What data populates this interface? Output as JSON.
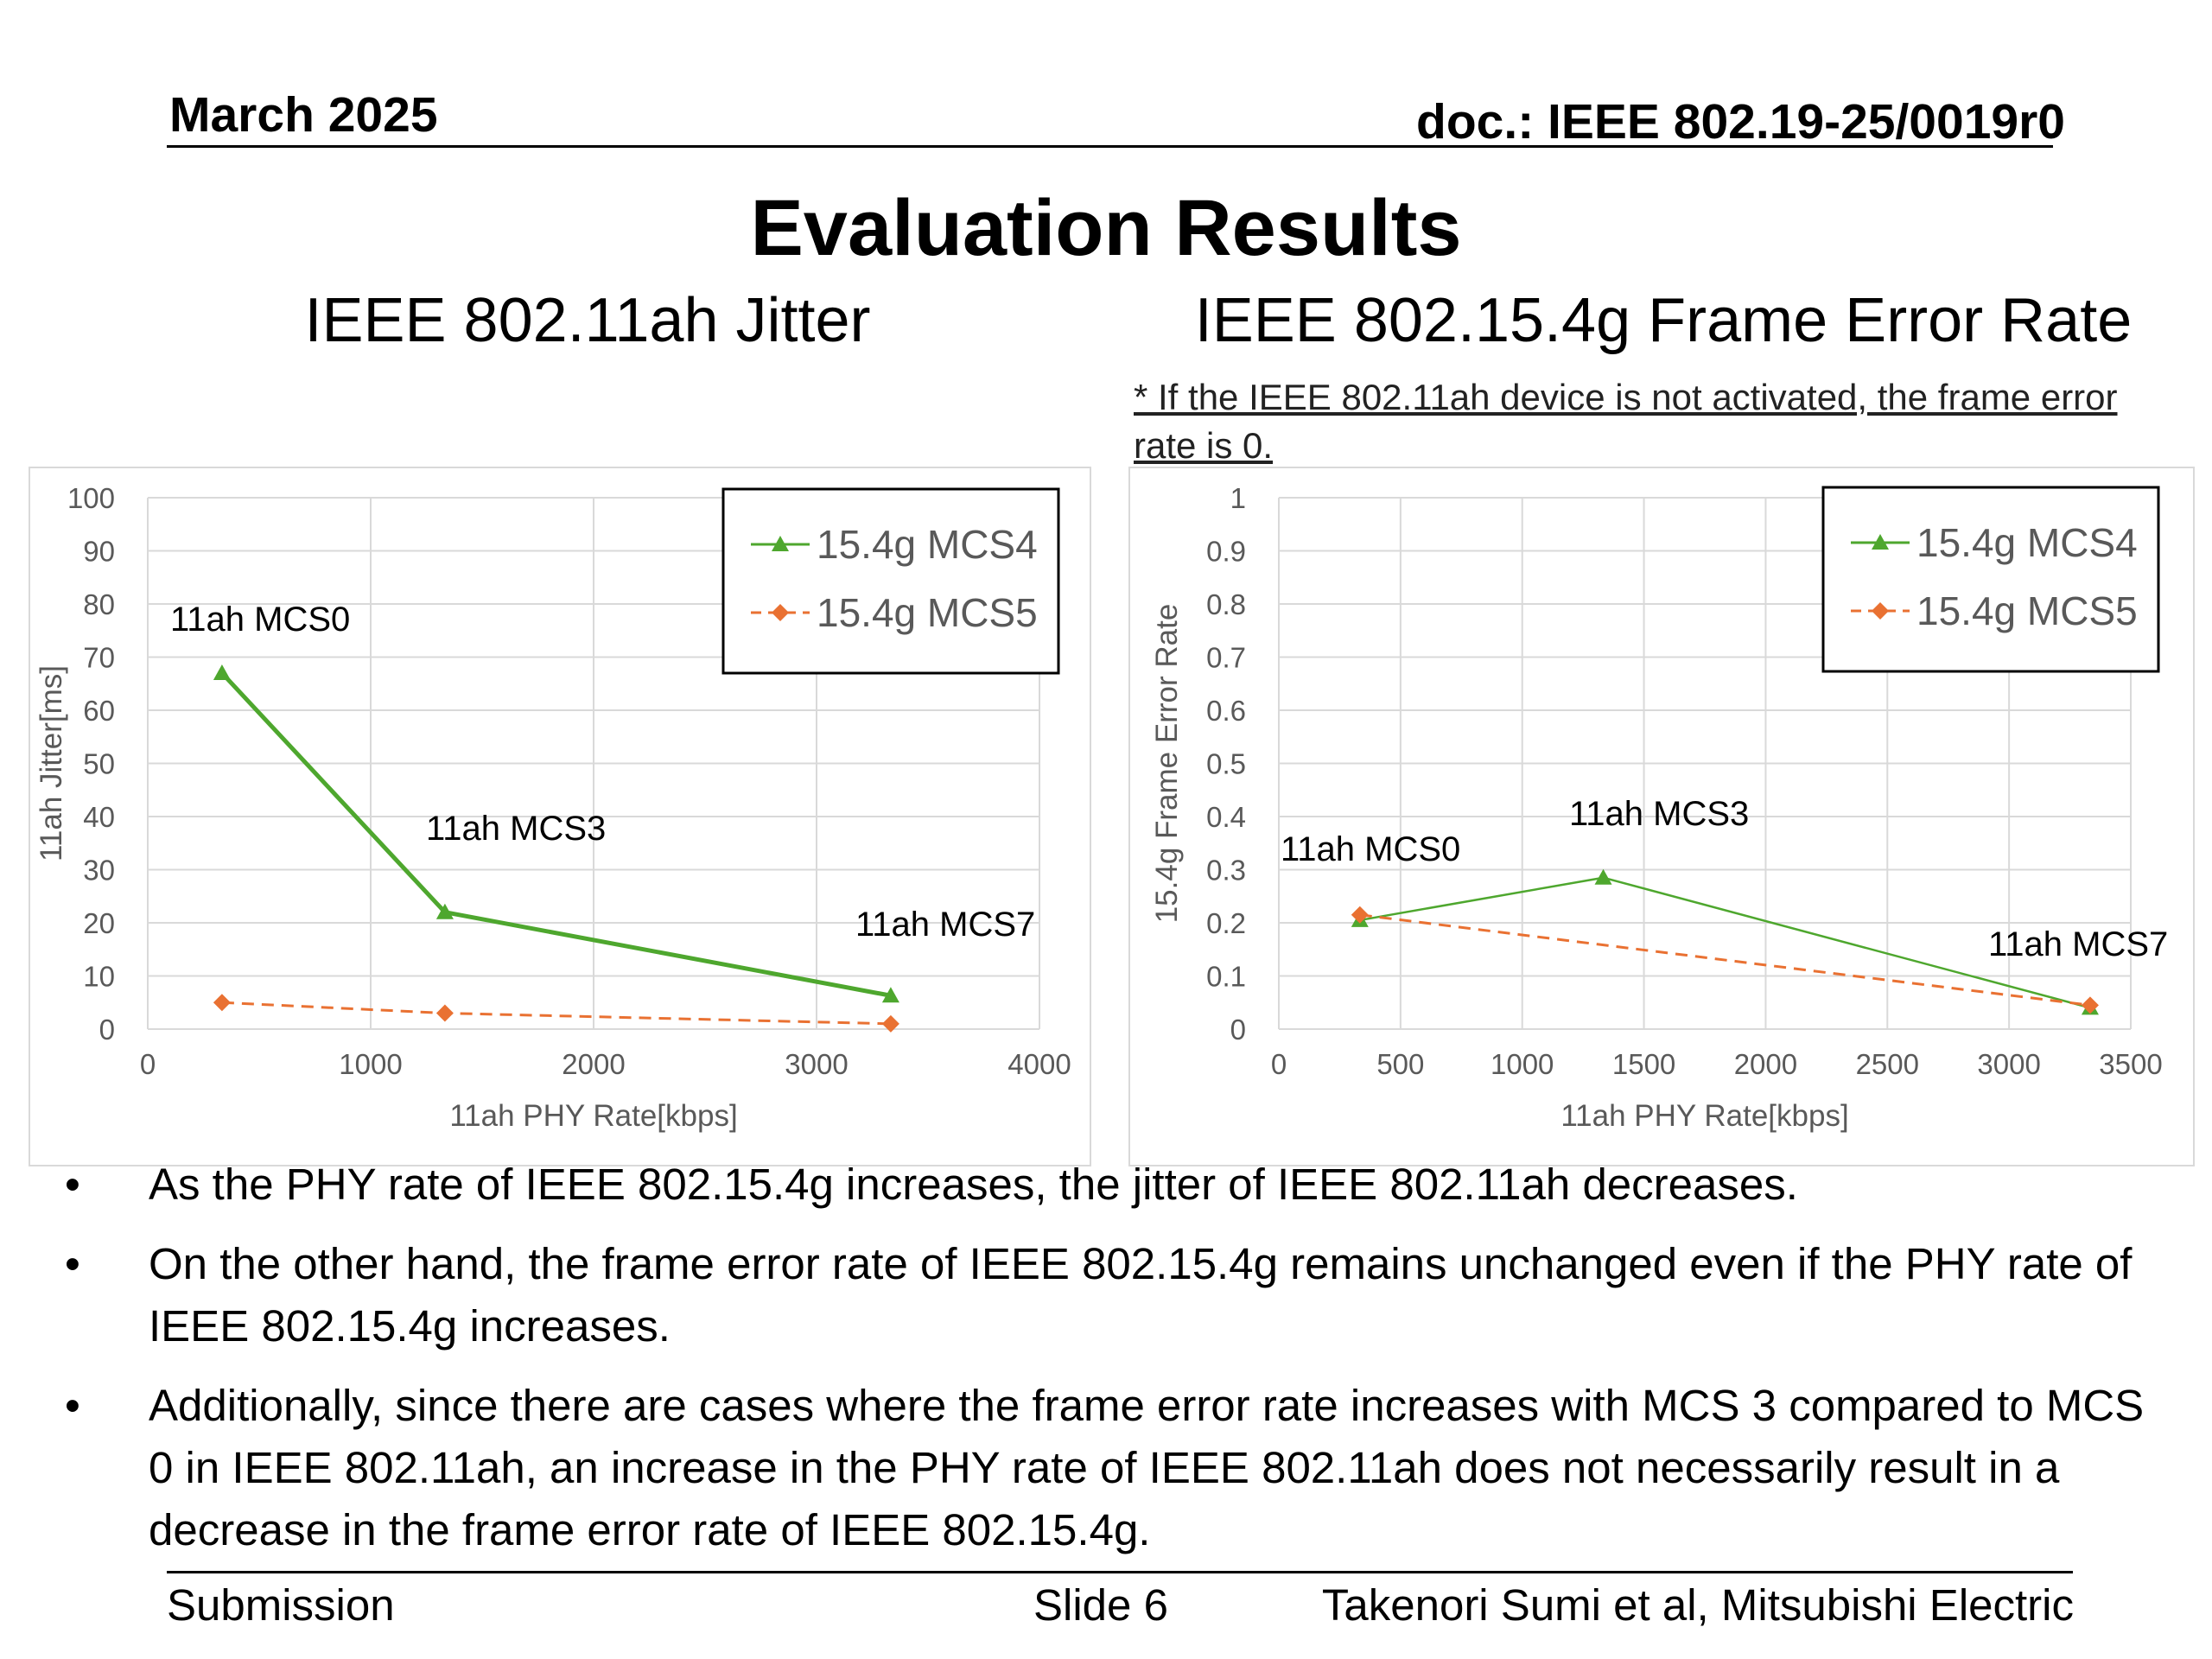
{
  "header": {
    "date": "March 2025",
    "doc": "doc.: IEEE 802.19-25/0019r0"
  },
  "title": "Evaluation Results",
  "subtitles": {
    "left": "IEEE 802.11ah Jitter",
    "right": "IEEE 802.15.4g Frame Error Rate"
  },
  "note": "* If the IEEE 802.11ah device is not activated, the frame error rate is 0.",
  "colors": {
    "mcs4": "#4EA72E",
    "mcs5": "#E97132",
    "grid": "#D9D9D9",
    "axis_text": "#595959"
  },
  "chart_data": [
    {
      "type": "line",
      "xlabel": "11ah PHY Rate[kbps]",
      "ylabel": "11ah Jitter[ms]",
      "xlim": [
        0,
        4000
      ],
      "ylim": [
        0,
        100
      ],
      "x_ticks": [
        "0",
        "1000",
        "2000",
        "3000",
        "4000"
      ],
      "y_ticks": [
        "0",
        "10",
        "20",
        "30",
        "40",
        "50",
        "60",
        "70",
        "80",
        "90",
        "100"
      ],
      "grid": true,
      "legend": "top-right",
      "series": [
        {
          "name": "15.4g MCS4",
          "x": [
            333,
            1333,
            3333
          ],
          "y": [
            67,
            22,
            6.3
          ]
        },
        {
          "name": "15.4g MCS5",
          "x": [
            333,
            1333,
            3333
          ],
          "y": [
            5,
            3,
            1
          ]
        }
      ],
      "annotations": [
        "11ah MCS0",
        "11ah MCS3",
        "11ah MCS7"
      ]
    },
    {
      "type": "line",
      "xlabel": "11ah PHY Rate[kbps]",
      "ylabel": "15.4g Frame Error Rate",
      "xlim": [
        0,
        3500
      ],
      "ylim": [
        0,
        1
      ],
      "x_ticks": [
        "0",
        "500",
        "1000",
        "1500",
        "2000",
        "2500",
        "3000",
        "3500"
      ],
      "y_ticks": [
        "0",
        "0.1",
        "0.2",
        "0.3",
        "0.4",
        "0.5",
        "0.6",
        "0.7",
        "0.8",
        "0.9",
        "1"
      ],
      "grid": true,
      "legend": "top-right",
      "series": [
        {
          "name": "15.4g MCS4",
          "x": [
            333,
            1333,
            3333
          ],
          "y": [
            0.205,
            0.285,
            0.04
          ]
        },
        {
          "name": "15.4g MCS5",
          "x": [
            333,
            3333
          ],
          "y": [
            0.215,
            0.045
          ]
        }
      ],
      "annotations": [
        "11ah MCS0",
        "11ah MCS3",
        "11ah MCS7"
      ]
    }
  ],
  "bullets": [
    "As the PHY rate of IEEE 802.15.4g increases, the jitter of IEEE 802.11ah decreases.",
    "On the other hand, the frame error rate of IEEE 802.15.4g remains unchanged even if the PHY rate of IEEE 802.15.4g increases.",
    "Additionally, since there are cases where the frame error rate increases with MCS 3 compared to MCS 0 in IEEE 802.11ah, an increase in the PHY rate of IEEE 802.11ah does not necessarily result in a decrease in the frame error rate of IEEE 802.15.4g."
  ],
  "bullet_symbol": "•",
  "footer": {
    "left": "Submission",
    "center": "Slide 6",
    "right": "Takenori Sumi et al, Mitsubishi Electric"
  }
}
